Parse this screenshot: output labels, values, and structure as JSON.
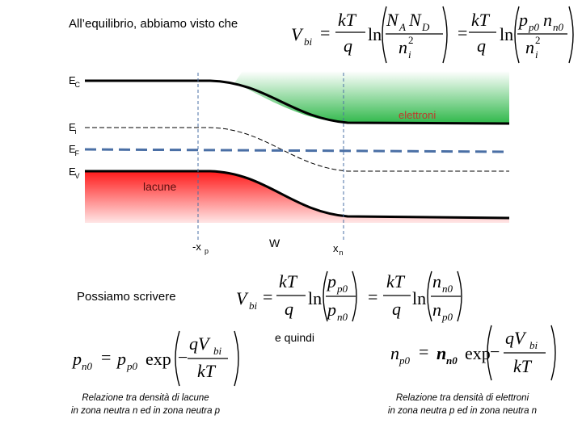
{
  "intro": "All’equilibrio, abbiamo visto che",
  "equation_1": [
    "V",
    "bi",
    "=",
    "kT",
    "q",
    "ln",
    "N",
    "A",
    "N",
    "D",
    "n",
    "2",
    "i",
    "=",
    "kT",
    "q",
    "ln",
    "p",
    "p0",
    "n",
    "n0",
    "n",
    "2",
    "i"
  ],
  "band_labels": {
    "ec": [
      "E",
      "C"
    ],
    "ei": [
      "E",
      "i"
    ],
    "ef": [
      "E",
      "F"
    ],
    "ev": [
      "E",
      "V"
    ]
  },
  "carriers": {
    "electrons": "elettroni",
    "holes": "lacune"
  },
  "positions": {
    "xp": [
      "-x",
      "p"
    ],
    "w": "W",
    "xn": [
      "x",
      "n"
    ]
  },
  "lead": "Possiamo scrivere",
  "equation_2": [
    "V",
    "bi",
    "=",
    "kT",
    "q",
    "ln",
    "p",
    "p0",
    "p",
    "n0",
    "=",
    "kT",
    "q",
    "ln",
    "n",
    "n0",
    "n",
    "p0"
  ],
  "connector": "e quindi",
  "equation_3": [
    "p",
    "n0",
    "=",
    "p",
    "p0",
    "exp",
    "−",
    "qV",
    "bi",
    "kT"
  ],
  "equation_4": [
    "n",
    "p0",
    "=",
    "n",
    "n0",
    "exp",
    "−",
    "qV",
    "bi",
    "kT"
  ],
  "caption_left": [
    "Relazione tra densità di lacune",
    "in zona neutra n ed in zona neutra p"
  ],
  "caption_right": [
    "Relazione tra densità di elettroni",
    "in zona neutra p ed in zona neutra n"
  ]
}
